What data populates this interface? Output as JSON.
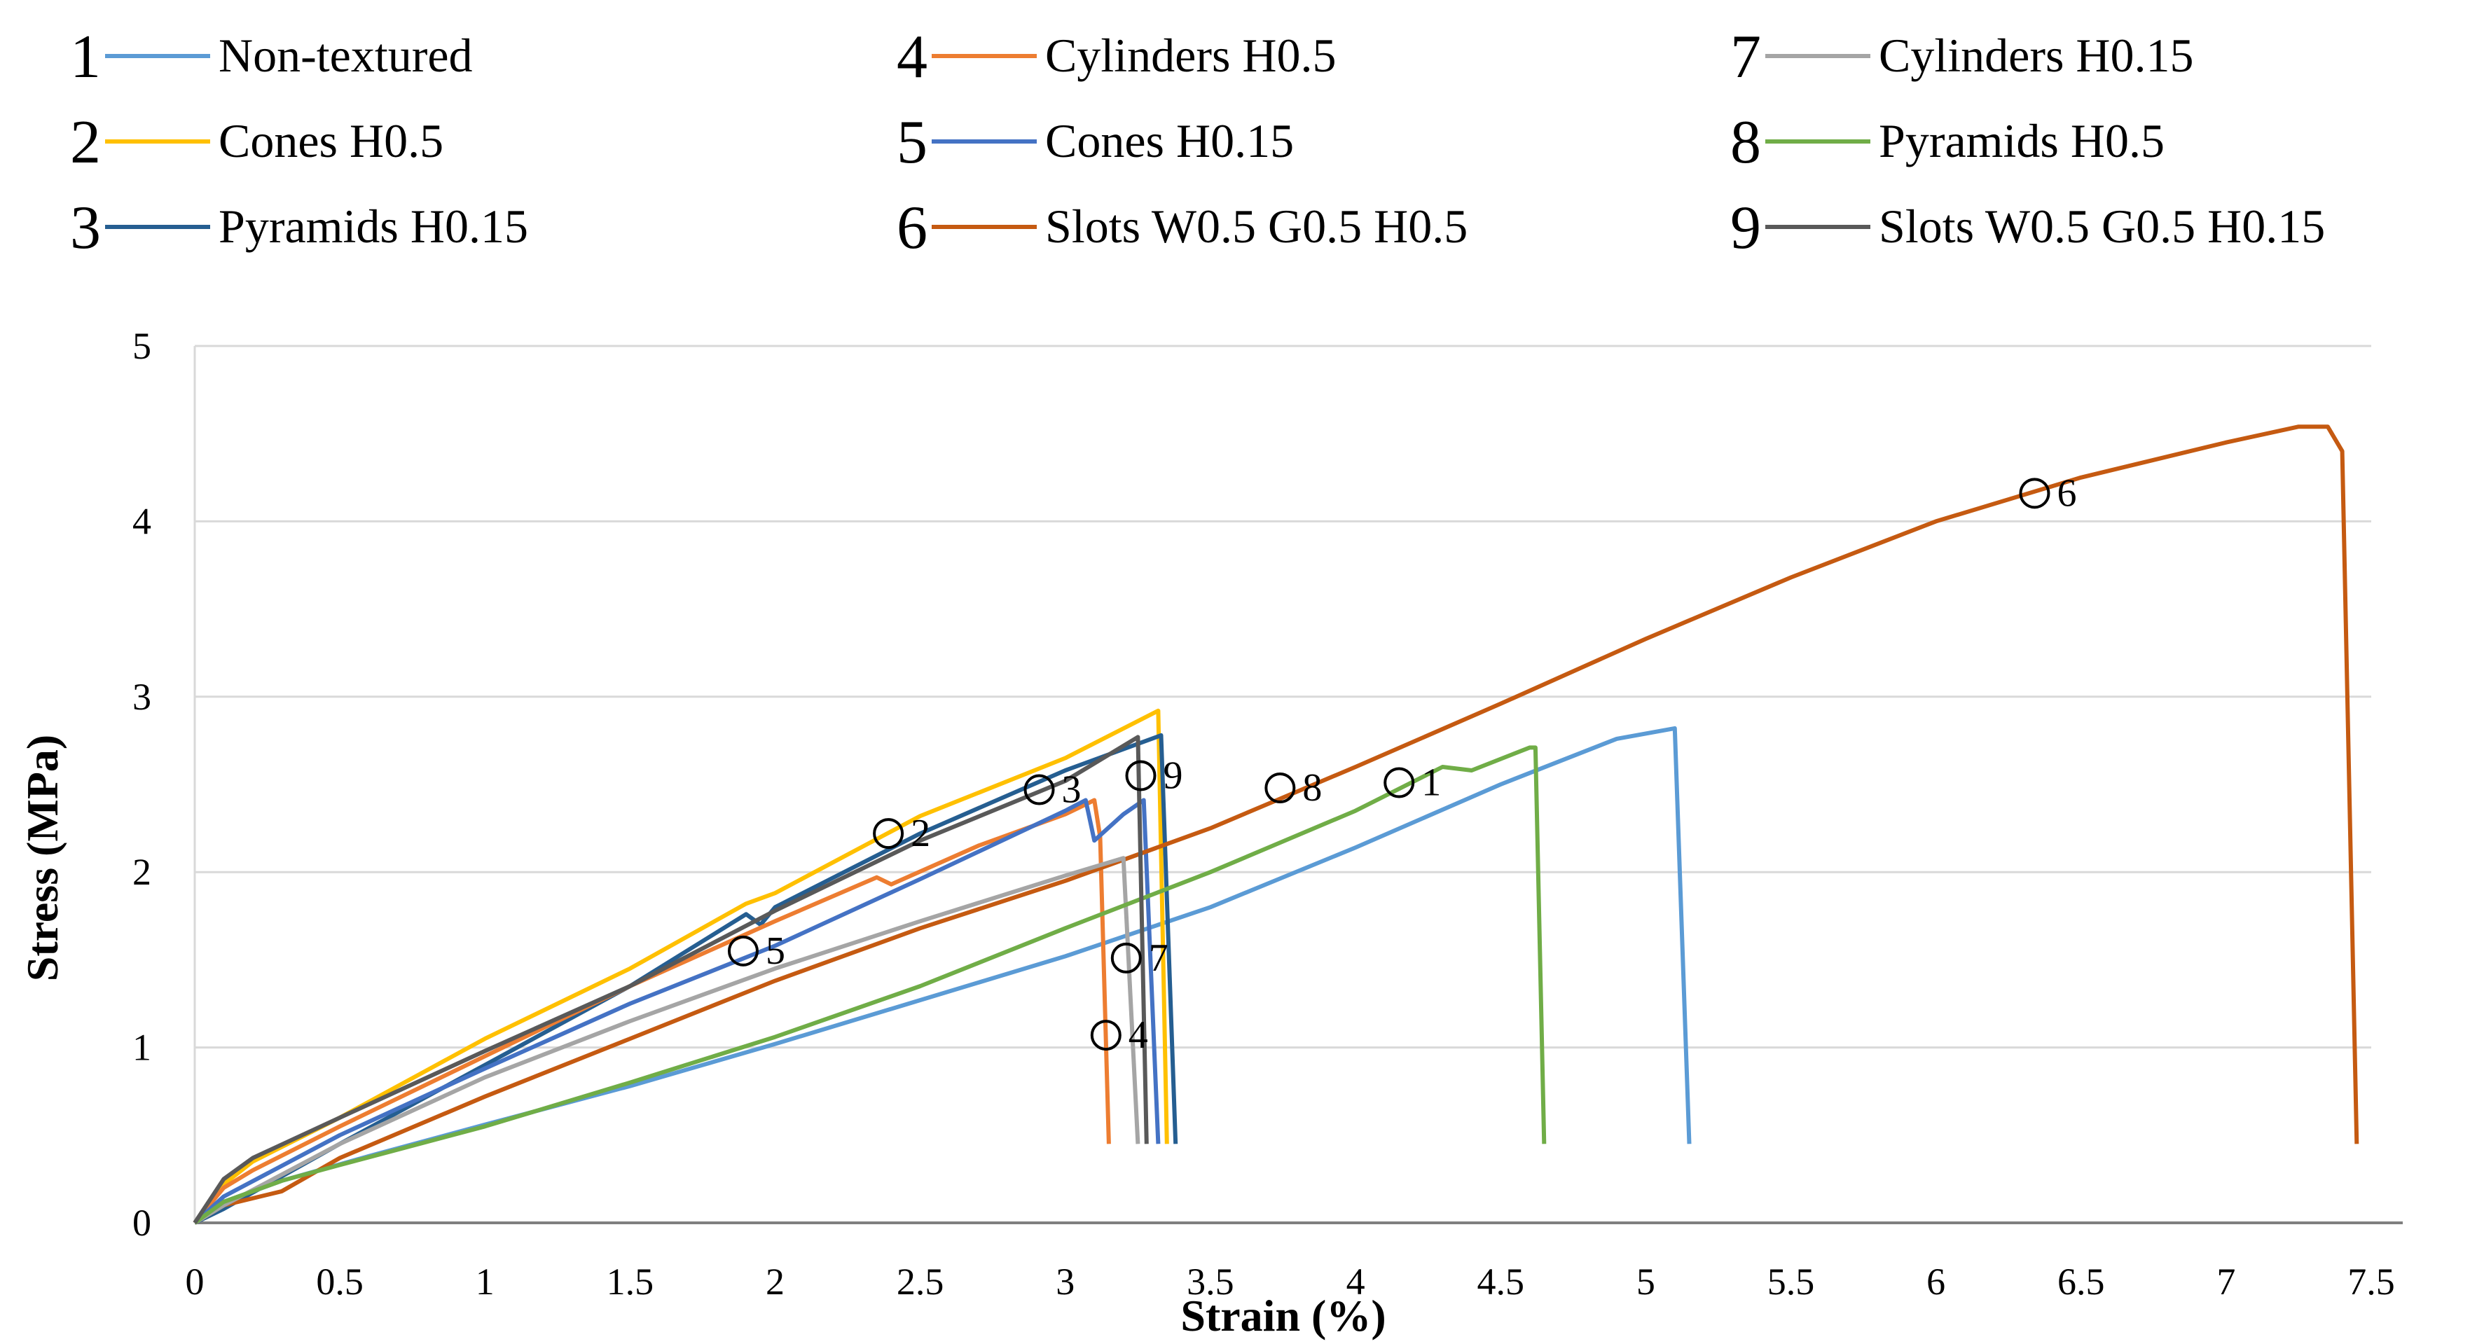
{
  "chart_data": {
    "type": "line",
    "title": "",
    "xlabel": "Strain (%)",
    "ylabel": "Stress (MPa)",
    "xlim": [
      0,
      7.5
    ],
    "ylim": [
      0,
      5
    ],
    "x_ticks": [
      "0",
      "0.5",
      "1",
      "1.5",
      "2",
      "2.5",
      "3",
      "3.5",
      "4",
      "4.5",
      "5",
      "5.5",
      "6",
      "6.5",
      "7",
      "7.5"
    ],
    "y_ticks": [
      "0",
      "1",
      "2",
      "3",
      "4",
      "5"
    ],
    "grid": "horizontal",
    "legend_position": "top",
    "series": [
      {
        "id": "1",
        "name": "Non-textured",
        "color": "#5b9bd5",
        "marker": {
          "label": "1",
          "x": 4.15,
          "y": 2.51
        },
        "points": [
          [
            0,
            0
          ],
          [
            0.1,
            0.12
          ],
          [
            0.3,
            0.24
          ],
          [
            0.6,
            0.38
          ],
          [
            1.0,
            0.56
          ],
          [
            1.5,
            0.78
          ],
          [
            2.0,
            1.02
          ],
          [
            2.5,
            1.27
          ],
          [
            3.0,
            1.52
          ],
          [
            3.5,
            1.8
          ],
          [
            4.0,
            2.14
          ],
          [
            4.5,
            2.5
          ],
          [
            4.9,
            2.76
          ],
          [
            5.1,
            2.82
          ],
          [
            5.15,
            0.45
          ]
        ]
      },
      {
        "id": "2",
        "name": "Cones H0.5",
        "color": "#ffc000",
        "marker": {
          "label": "2",
          "x": 2.39,
          "y": 2.22
        },
        "points": [
          [
            0,
            0
          ],
          [
            0.1,
            0.22
          ],
          [
            0.2,
            0.35
          ],
          [
            0.5,
            0.6
          ],
          [
            1.0,
            1.05
          ],
          [
            1.5,
            1.45
          ],
          [
            1.9,
            1.82
          ],
          [
            2.0,
            1.88
          ],
          [
            2.5,
            2.32
          ],
          [
            3.0,
            2.65
          ],
          [
            3.32,
            2.92
          ],
          [
            3.35,
            0.45
          ]
        ]
      },
      {
        "id": "3",
        "name": "Pyramids H0.15",
        "color": "#255e91",
        "marker": {
          "label": "3",
          "x": 2.91,
          "y": 2.47
        },
        "points": [
          [
            0,
            0
          ],
          [
            0.1,
            0.08
          ],
          [
            0.5,
            0.45
          ],
          [
            1.0,
            0.9
          ],
          [
            1.5,
            1.35
          ],
          [
            1.9,
            1.76
          ],
          [
            1.95,
            1.7
          ],
          [
            2.0,
            1.8
          ],
          [
            2.5,
            2.22
          ],
          [
            3.0,
            2.58
          ],
          [
            3.33,
            2.78
          ],
          [
            3.38,
            0.45
          ]
        ]
      },
      {
        "id": "4",
        "name": "Cylinders H0.5",
        "color": "#ed7d31",
        "marker": {
          "label": "4",
          "x": 3.14,
          "y": 1.07
        },
        "points": [
          [
            0,
            0
          ],
          [
            0.1,
            0.2
          ],
          [
            0.2,
            0.3
          ],
          [
            0.5,
            0.55
          ],
          [
            1.0,
            0.95
          ],
          [
            1.5,
            1.35
          ],
          [
            2.0,
            1.72
          ],
          [
            2.35,
            1.97
          ],
          [
            2.4,
            1.93
          ],
          [
            2.7,
            2.15
          ],
          [
            3.0,
            2.33
          ],
          [
            3.1,
            2.41
          ],
          [
            3.12,
            2.2
          ],
          [
            3.15,
            0.45
          ]
        ]
      },
      {
        "id": "5",
        "name": "Cones H0.15",
        "color": "#4472c4",
        "marker": {
          "label": "5",
          "x": 1.89,
          "y": 1.55
        },
        "points": [
          [
            0,
            0
          ],
          [
            0.1,
            0.15
          ],
          [
            0.5,
            0.5
          ],
          [
            1.0,
            0.88
          ],
          [
            1.5,
            1.25
          ],
          [
            2.0,
            1.58
          ],
          [
            2.5,
            1.96
          ],
          [
            3.0,
            2.35
          ],
          [
            3.07,
            2.41
          ],
          [
            3.1,
            2.18
          ],
          [
            3.2,
            2.33
          ],
          [
            3.27,
            2.41
          ],
          [
            3.32,
            0.45
          ]
        ]
      },
      {
        "id": "6",
        "name": "Slots W0.5 G0.5 H0.5",
        "color": "#c55a11",
        "marker": {
          "label": "6",
          "x": 6.34,
          "y": 4.16
        },
        "points": [
          [
            0,
            0
          ],
          [
            0.1,
            0.1
          ],
          [
            0.3,
            0.18
          ],
          [
            0.5,
            0.37
          ],
          [
            1.0,
            0.72
          ],
          [
            1.5,
            1.05
          ],
          [
            2.0,
            1.38
          ],
          [
            2.5,
            1.68
          ],
          [
            3.0,
            1.95
          ],
          [
            3.5,
            2.25
          ],
          [
            4.0,
            2.6
          ],
          [
            4.5,
            2.96
          ],
          [
            5.0,
            3.33
          ],
          [
            5.5,
            3.68
          ],
          [
            6.0,
            4.0
          ],
          [
            6.5,
            4.25
          ],
          [
            7.0,
            4.45
          ],
          [
            7.25,
            4.54
          ],
          [
            7.35,
            4.54
          ],
          [
            7.4,
            4.4
          ],
          [
            7.45,
            0.45
          ]
        ]
      },
      {
        "id": "7",
        "name": "Cylinders H0.15",
        "color": "#a5a5a5",
        "marker": {
          "label": "7",
          "x": 3.21,
          "y": 1.51
        },
        "points": [
          [
            0,
            0
          ],
          [
            0.1,
            0.1
          ],
          [
            0.5,
            0.45
          ],
          [
            1.0,
            0.83
          ],
          [
            1.5,
            1.15
          ],
          [
            2.0,
            1.45
          ],
          [
            2.5,
            1.72
          ],
          [
            3.0,
            1.98
          ],
          [
            3.2,
            2.08
          ],
          [
            3.25,
            0.45
          ]
        ]
      },
      {
        "id": "8",
        "name": "Pyramids H0.5",
        "color": "#70ad47",
        "marker": {
          "label": "8",
          "x": 3.74,
          "y": 2.48
        },
        "points": [
          [
            0,
            0
          ],
          [
            0.1,
            0.12
          ],
          [
            0.3,
            0.24
          ],
          [
            0.5,
            0.33
          ],
          [
            1.0,
            0.55
          ],
          [
            1.5,
            0.8
          ],
          [
            2.0,
            1.06
          ],
          [
            2.5,
            1.35
          ],
          [
            3.0,
            1.68
          ],
          [
            3.5,
            2.0
          ],
          [
            4.0,
            2.35
          ],
          [
            4.3,
            2.6
          ],
          [
            4.4,
            2.58
          ],
          [
            4.6,
            2.71
          ],
          [
            4.62,
            2.71
          ],
          [
            4.65,
            0.45
          ]
        ]
      },
      {
        "id": "9",
        "name": "Slots W0.5 G0.5 H0.15",
        "color": "#595959",
        "marker": {
          "label": "9",
          "x": 3.26,
          "y": 2.55
        },
        "points": [
          [
            0,
            0
          ],
          [
            0.1,
            0.25
          ],
          [
            0.2,
            0.37
          ],
          [
            0.5,
            0.6
          ],
          [
            1.0,
            0.98
          ],
          [
            1.5,
            1.35
          ],
          [
            2.0,
            1.78
          ],
          [
            2.5,
            2.18
          ],
          [
            3.0,
            2.52
          ],
          [
            3.25,
            2.77
          ],
          [
            3.28,
            0.45
          ]
        ]
      }
    ]
  }
}
